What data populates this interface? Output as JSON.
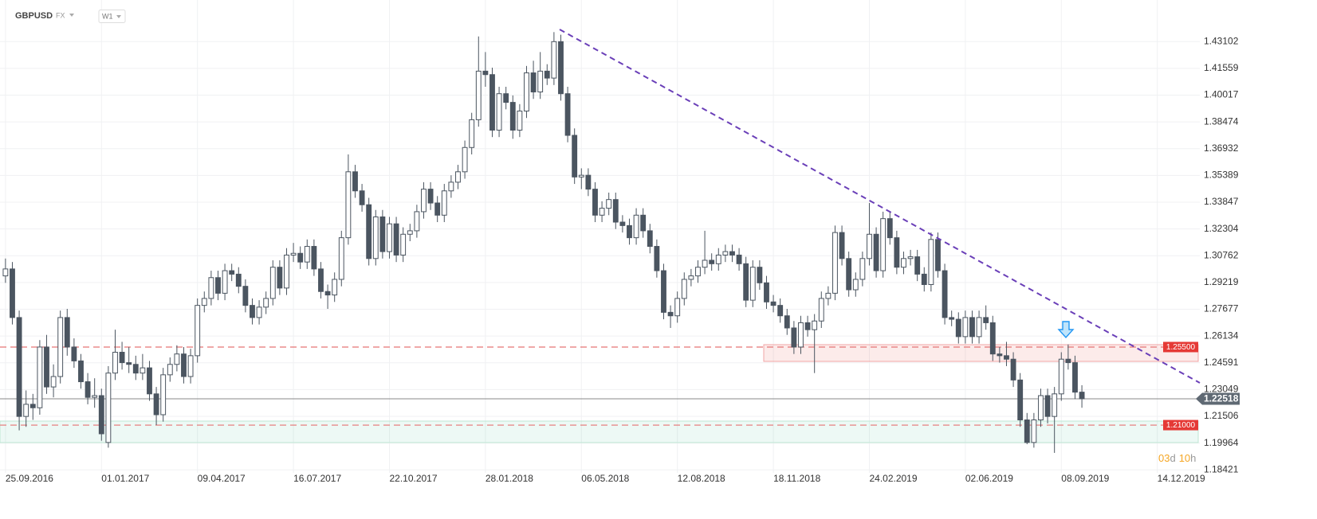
{
  "chart_data": {
    "type": "candlestick",
    "symbol": "GBPUSD",
    "market": "FX",
    "timeframe": "W1",
    "up_color": "#ffffff",
    "down_color": "#4b5560",
    "grid": true,
    "xlim": [
      -0.8,
      174.2
    ],
    "xticks": [
      {
        "value": 0,
        "label": "25.09.2016"
      },
      {
        "value": 14,
        "label": "01.01.2017"
      },
      {
        "value": 28,
        "label": "09.04.2017"
      },
      {
        "value": 42,
        "label": "16.07.2017"
      },
      {
        "value": 56,
        "label": "22.10.2017"
      },
      {
        "value": 70,
        "label": "28.01.2018"
      },
      {
        "value": 84,
        "label": "06.05.2018"
      },
      {
        "value": 98,
        "label": "12.08.2018"
      },
      {
        "value": 112,
        "label": "18.11.2018"
      },
      {
        "value": 126,
        "label": "24.02.2019"
      },
      {
        "value": 140,
        "label": "02.06.2019"
      },
      {
        "value": 154,
        "label": "08.09.2019"
      },
      {
        "value": 168,
        "label": "14.12.2019"
      }
    ],
    "ylim": [
      1.1825,
      1.455
    ],
    "yticks": [
      1.18421,
      1.19964,
      1.21506,
      1.23049,
      1.24591,
      1.26134,
      1.27677,
      1.29219,
      1.30762,
      1.32304,
      1.33847,
      1.35389,
      1.36932,
      1.38474,
      1.40017,
      1.41559,
      1.43102
    ],
    "levels": [
      {
        "value": 1.255,
        "label": "1.25500"
      },
      {
        "value": 1.21,
        "label": "1.21000"
      }
    ],
    "last_price": 1.22518,
    "countdown": {
      "days": "03",
      "day_unit": "d",
      "hours": "10",
      "hour_unit": "h"
    },
    "ohlc": [
      [
        1.296,
        1.306,
        1.292,
        1.3
      ],
      [
        1.3,
        1.304,
        1.268,
        1.272
      ],
      [
        1.272,
        1.276,
        1.207,
        1.215
      ],
      [
        1.215,
        1.23,
        1.209,
        1.222
      ],
      [
        1.222,
        1.228,
        1.213,
        1.22
      ],
      [
        1.22,
        1.259,
        1.216,
        1.255
      ],
      [
        1.255,
        1.262,
        1.228,
        1.232
      ],
      [
        1.232,
        1.245,
        1.226,
        1.238
      ],
      [
        1.238,
        1.276,
        1.234,
        1.272
      ],
      [
        1.272,
        1.277,
        1.25,
        1.255
      ],
      [
        1.255,
        1.26,
        1.243,
        1.247
      ],
      [
        1.247,
        1.251,
        1.231,
        1.235
      ],
      [
        1.235,
        1.24,
        1.222,
        1.226
      ],
      [
        1.226,
        1.237,
        1.22,
        1.227
      ],
      [
        1.227,
        1.231,
        1.201,
        1.205
      ],
      [
        1.2,
        1.244,
        1.197,
        1.24
      ],
      [
        1.24,
        1.265,
        1.236,
        1.252
      ],
      [
        1.252,
        1.258,
        1.242,
        1.246
      ],
      [
        1.246,
        1.255,
        1.24,
        1.245
      ],
      [
        1.245,
        1.25,
        1.236,
        1.24
      ],
      [
        1.24,
        1.251,
        1.236,
        1.243
      ],
      [
        1.243,
        1.247,
        1.224,
        1.228
      ],
      [
        1.228,
        1.232,
        1.21,
        1.216
      ],
      [
        1.216,
        1.243,
        1.212,
        1.239
      ],
      [
        1.239,
        1.249,
        1.235,
        1.245
      ],
      [
        1.245,
        1.256,
        1.241,
        1.251
      ],
      [
        1.251,
        1.255,
        1.234,
        1.238
      ],
      [
        1.238,
        1.254,
        1.234,
        1.25
      ],
      [
        1.25,
        1.283,
        1.246,
        1.279
      ],
      [
        1.279,
        1.287,
        1.275,
        1.283
      ],
      [
        1.283,
        1.299,
        1.279,
        1.295
      ],
      [
        1.295,
        1.299,
        1.282,
        1.286
      ],
      [
        1.286,
        1.303,
        1.282,
        1.299
      ],
      [
        1.299,
        1.303,
        1.293,
        1.297
      ],
      [
        1.297,
        1.301,
        1.286,
        1.29
      ],
      [
        1.29,
        1.294,
        1.275,
        1.279
      ],
      [
        1.279,
        1.283,
        1.268,
        1.272
      ],
      [
        1.272,
        1.282,
        1.268,
        1.278
      ],
      [
        1.278,
        1.287,
        1.274,
        1.283
      ],
      [
        1.283,
        1.305,
        1.279,
        1.301
      ],
      [
        1.301,
        1.305,
        1.285,
        1.289
      ],
      [
        1.289,
        1.312,
        1.285,
        1.308
      ],
      [
        1.308,
        1.315,
        1.304,
        1.309
      ],
      [
        1.309,
        1.313,
        1.3,
        1.304
      ],
      [
        1.304,
        1.317,
        1.3,
        1.313
      ],
      [
        1.313,
        1.317,
        1.296,
        1.3
      ],
      [
        1.3,
        1.304,
        1.283,
        1.287
      ],
      [
        1.287,
        1.291,
        1.277,
        1.285
      ],
      [
        1.285,
        1.298,
        1.281,
        1.294
      ],
      [
        1.294,
        1.322,
        1.29,
        1.318
      ],
      [
        1.318,
        1.366,
        1.314,
        1.356
      ],
      [
        1.356,
        1.36,
        1.341,
        1.345
      ],
      [
        1.345,
        1.349,
        1.333,
        1.337
      ],
      [
        1.337,
        1.341,
        1.302,
        1.306
      ],
      [
        1.306,
        1.334,
        1.302,
        1.33
      ],
      [
        1.33,
        1.334,
        1.306,
        1.31
      ],
      [
        1.31,
        1.33,
        1.306,
        1.326
      ],
      [
        1.326,
        1.33,
        1.304,
        1.308
      ],
      [
        1.308,
        1.324,
        1.304,
        1.32
      ],
      [
        1.32,
        1.326,
        1.316,
        1.322
      ],
      [
        1.322,
        1.337,
        1.318,
        1.333
      ],
      [
        1.333,
        1.35,
        1.329,
        1.346
      ],
      [
        1.346,
        1.35,
        1.334,
        1.338
      ],
      [
        1.338,
        1.342,
        1.327,
        1.331
      ],
      [
        1.331,
        1.349,
        1.327,
        1.345
      ],
      [
        1.345,
        1.354,
        1.341,
        1.35
      ],
      [
        1.35,
        1.36,
        1.346,
        1.356
      ],
      [
        1.356,
        1.374,
        1.352,
        1.37
      ],
      [
        1.37,
        1.39,
        1.366,
        1.386
      ],
      [
        1.386,
        1.434,
        1.382,
        1.414
      ],
      [
        1.414,
        1.425,
        1.405,
        1.412
      ],
      [
        1.412,
        1.416,
        1.376,
        1.38
      ],
      [
        1.38,
        1.405,
        1.376,
        1.401
      ],
      [
        1.401,
        1.405,
        1.392,
        1.396
      ],
      [
        1.396,
        1.4,
        1.375,
        1.38
      ],
      [
        1.38,
        1.395,
        1.376,
        1.391
      ],
      [
        1.391,
        1.417,
        1.387,
        1.413
      ],
      [
        1.413,
        1.42,
        1.398,
        1.402
      ],
      [
        1.402,
        1.425,
        1.398,
        1.414
      ],
      [
        1.414,
        1.418,
        1.406,
        1.41
      ],
      [
        1.41,
        1.4365,
        1.406,
        1.431
      ],
      [
        1.431,
        1.435,
        1.397,
        1.401
      ],
      [
        1.401,
        1.405,
        1.373,
        1.377
      ],
      [
        1.377,
        1.381,
        1.349,
        1.353
      ],
      [
        1.353,
        1.358,
        1.346,
        1.354
      ],
      [
        1.354,
        1.358,
        1.342,
        1.346
      ],
      [
        1.346,
        1.35,
        1.327,
        1.331
      ],
      [
        1.331,
        1.339,
        1.327,
        1.335
      ],
      [
        1.335,
        1.344,
        1.331,
        1.34
      ],
      [
        1.34,
        1.344,
        1.323,
        1.327
      ],
      [
        1.327,
        1.331,
        1.321,
        1.325
      ],
      [
        1.325,
        1.329,
        1.314,
        1.318
      ],
      [
        1.318,
        1.335,
        1.314,
        1.331
      ],
      [
        1.331,
        1.335,
        1.318,
        1.322
      ],
      [
        1.322,
        1.326,
        1.309,
        1.313
      ],
      [
        1.313,
        1.317,
        1.295,
        1.299
      ],
      [
        1.299,
        1.303,
        1.271,
        1.275
      ],
      [
        1.275,
        1.279,
        1.266,
        1.273
      ],
      [
        1.273,
        1.287,
        1.269,
        1.283
      ],
      [
        1.283,
        1.298,
        1.279,
        1.294
      ],
      [
        1.294,
        1.3,
        1.29,
        1.296
      ],
      [
        1.296,
        1.305,
        1.292,
        1.301
      ],
      [
        1.301,
        1.322,
        1.297,
        1.305
      ],
      [
        1.305,
        1.309,
        1.299,
        1.303
      ],
      [
        1.303,
        1.312,
        1.299,
        1.308
      ],
      [
        1.308,
        1.314,
        1.304,
        1.31
      ],
      [
        1.31,
        1.314,
        1.304,
        1.308
      ],
      [
        1.308,
        1.312,
        1.299,
        1.303
      ],
      [
        1.303,
        1.307,
        1.278,
        1.282
      ],
      [
        1.282,
        1.305,
        1.278,
        1.301
      ],
      [
        1.301,
        1.305,
        1.288,
        1.292
      ],
      [
        1.292,
        1.296,
        1.277,
        1.281
      ],
      [
        1.281,
        1.285,
        1.275,
        1.279
      ],
      [
        1.279,
        1.283,
        1.269,
        1.273
      ],
      [
        1.273,
        1.277,
        1.262,
        1.266
      ],
      [
        1.266,
        1.27,
        1.251,
        1.255
      ],
      [
        1.255,
        1.273,
        1.251,
        1.269
      ],
      [
        1.269,
        1.273,
        1.261,
        1.265
      ],
      [
        1.265,
        1.274,
        1.24,
        1.27
      ],
      [
        1.27,
        1.287,
        1.266,
        1.283
      ],
      [
        1.283,
        1.29,
        1.279,
        1.286
      ],
      [
        1.286,
        1.325,
        1.282,
        1.321
      ],
      [
        1.321,
        1.325,
        1.302,
        1.306
      ],
      [
        1.306,
        1.31,
        1.284,
        1.288
      ],
      [
        1.288,
        1.298,
        1.284,
        1.294
      ],
      [
        1.294,
        1.31,
        1.29,
        1.306
      ],
      [
        1.306,
        1.338,
        1.302,
        1.32
      ],
      [
        1.32,
        1.324,
        1.295,
        1.299
      ],
      [
        1.299,
        1.333,
        1.295,
        1.329
      ],
      [
        1.329,
        1.333,
        1.314,
        1.318
      ],
      [
        1.318,
        1.322,
        1.297,
        1.301
      ],
      [
        1.301,
        1.31,
        1.297,
        1.306
      ],
      [
        1.306,
        1.311,
        1.302,
        1.307
      ],
      [
        1.307,
        1.311,
        1.293,
        1.297
      ],
      [
        1.297,
        1.301,
        1.287,
        1.291
      ],
      [
        1.291,
        1.321,
        1.287,
        1.317
      ],
      [
        1.317,
        1.321,
        1.295,
        1.299
      ],
      [
        1.299,
        1.303,
        1.268,
        1.272
      ],
      [
        1.272,
        1.276,
        1.267,
        1.271
      ],
      [
        1.271,
        1.275,
        1.257,
        1.261
      ],
      [
        1.261,
        1.276,
        1.257,
        1.272
      ],
      [
        1.272,
        1.276,
        1.257,
        1.261
      ],
      [
        1.261,
        1.276,
        1.257,
        1.272
      ],
      [
        1.272,
        1.279,
        1.265,
        1.269
      ],
      [
        1.269,
        1.273,
        1.247,
        1.251
      ],
      [
        1.251,
        1.255,
        1.246,
        1.25
      ],
      [
        1.25,
        1.258,
        1.244,
        1.248
      ],
      [
        1.248,
        1.252,
        1.232,
        1.236
      ],
      [
        1.236,
        1.24,
        1.209,
        1.213
      ],
      [
        1.213,
        1.217,
        1.199,
        1.2
      ],
      [
        1.2,
        1.217,
        1.197,
        1.213
      ],
      [
        1.213,
        1.231,
        1.209,
        1.227
      ],
      [
        1.227,
        1.231,
        1.211,
        1.215
      ],
      [
        1.215,
        1.232,
        1.194,
        1.228
      ],
      [
        1.228,
        1.252,
        1.224,
        1.248
      ],
      [
        1.248,
        1.2565,
        1.242,
        1.246
      ],
      [
        1.246,
        1.25,
        1.225,
        1.229
      ],
      [
        1.229,
        1.233,
        1.22,
        1.22518
      ]
    ]
  }
}
